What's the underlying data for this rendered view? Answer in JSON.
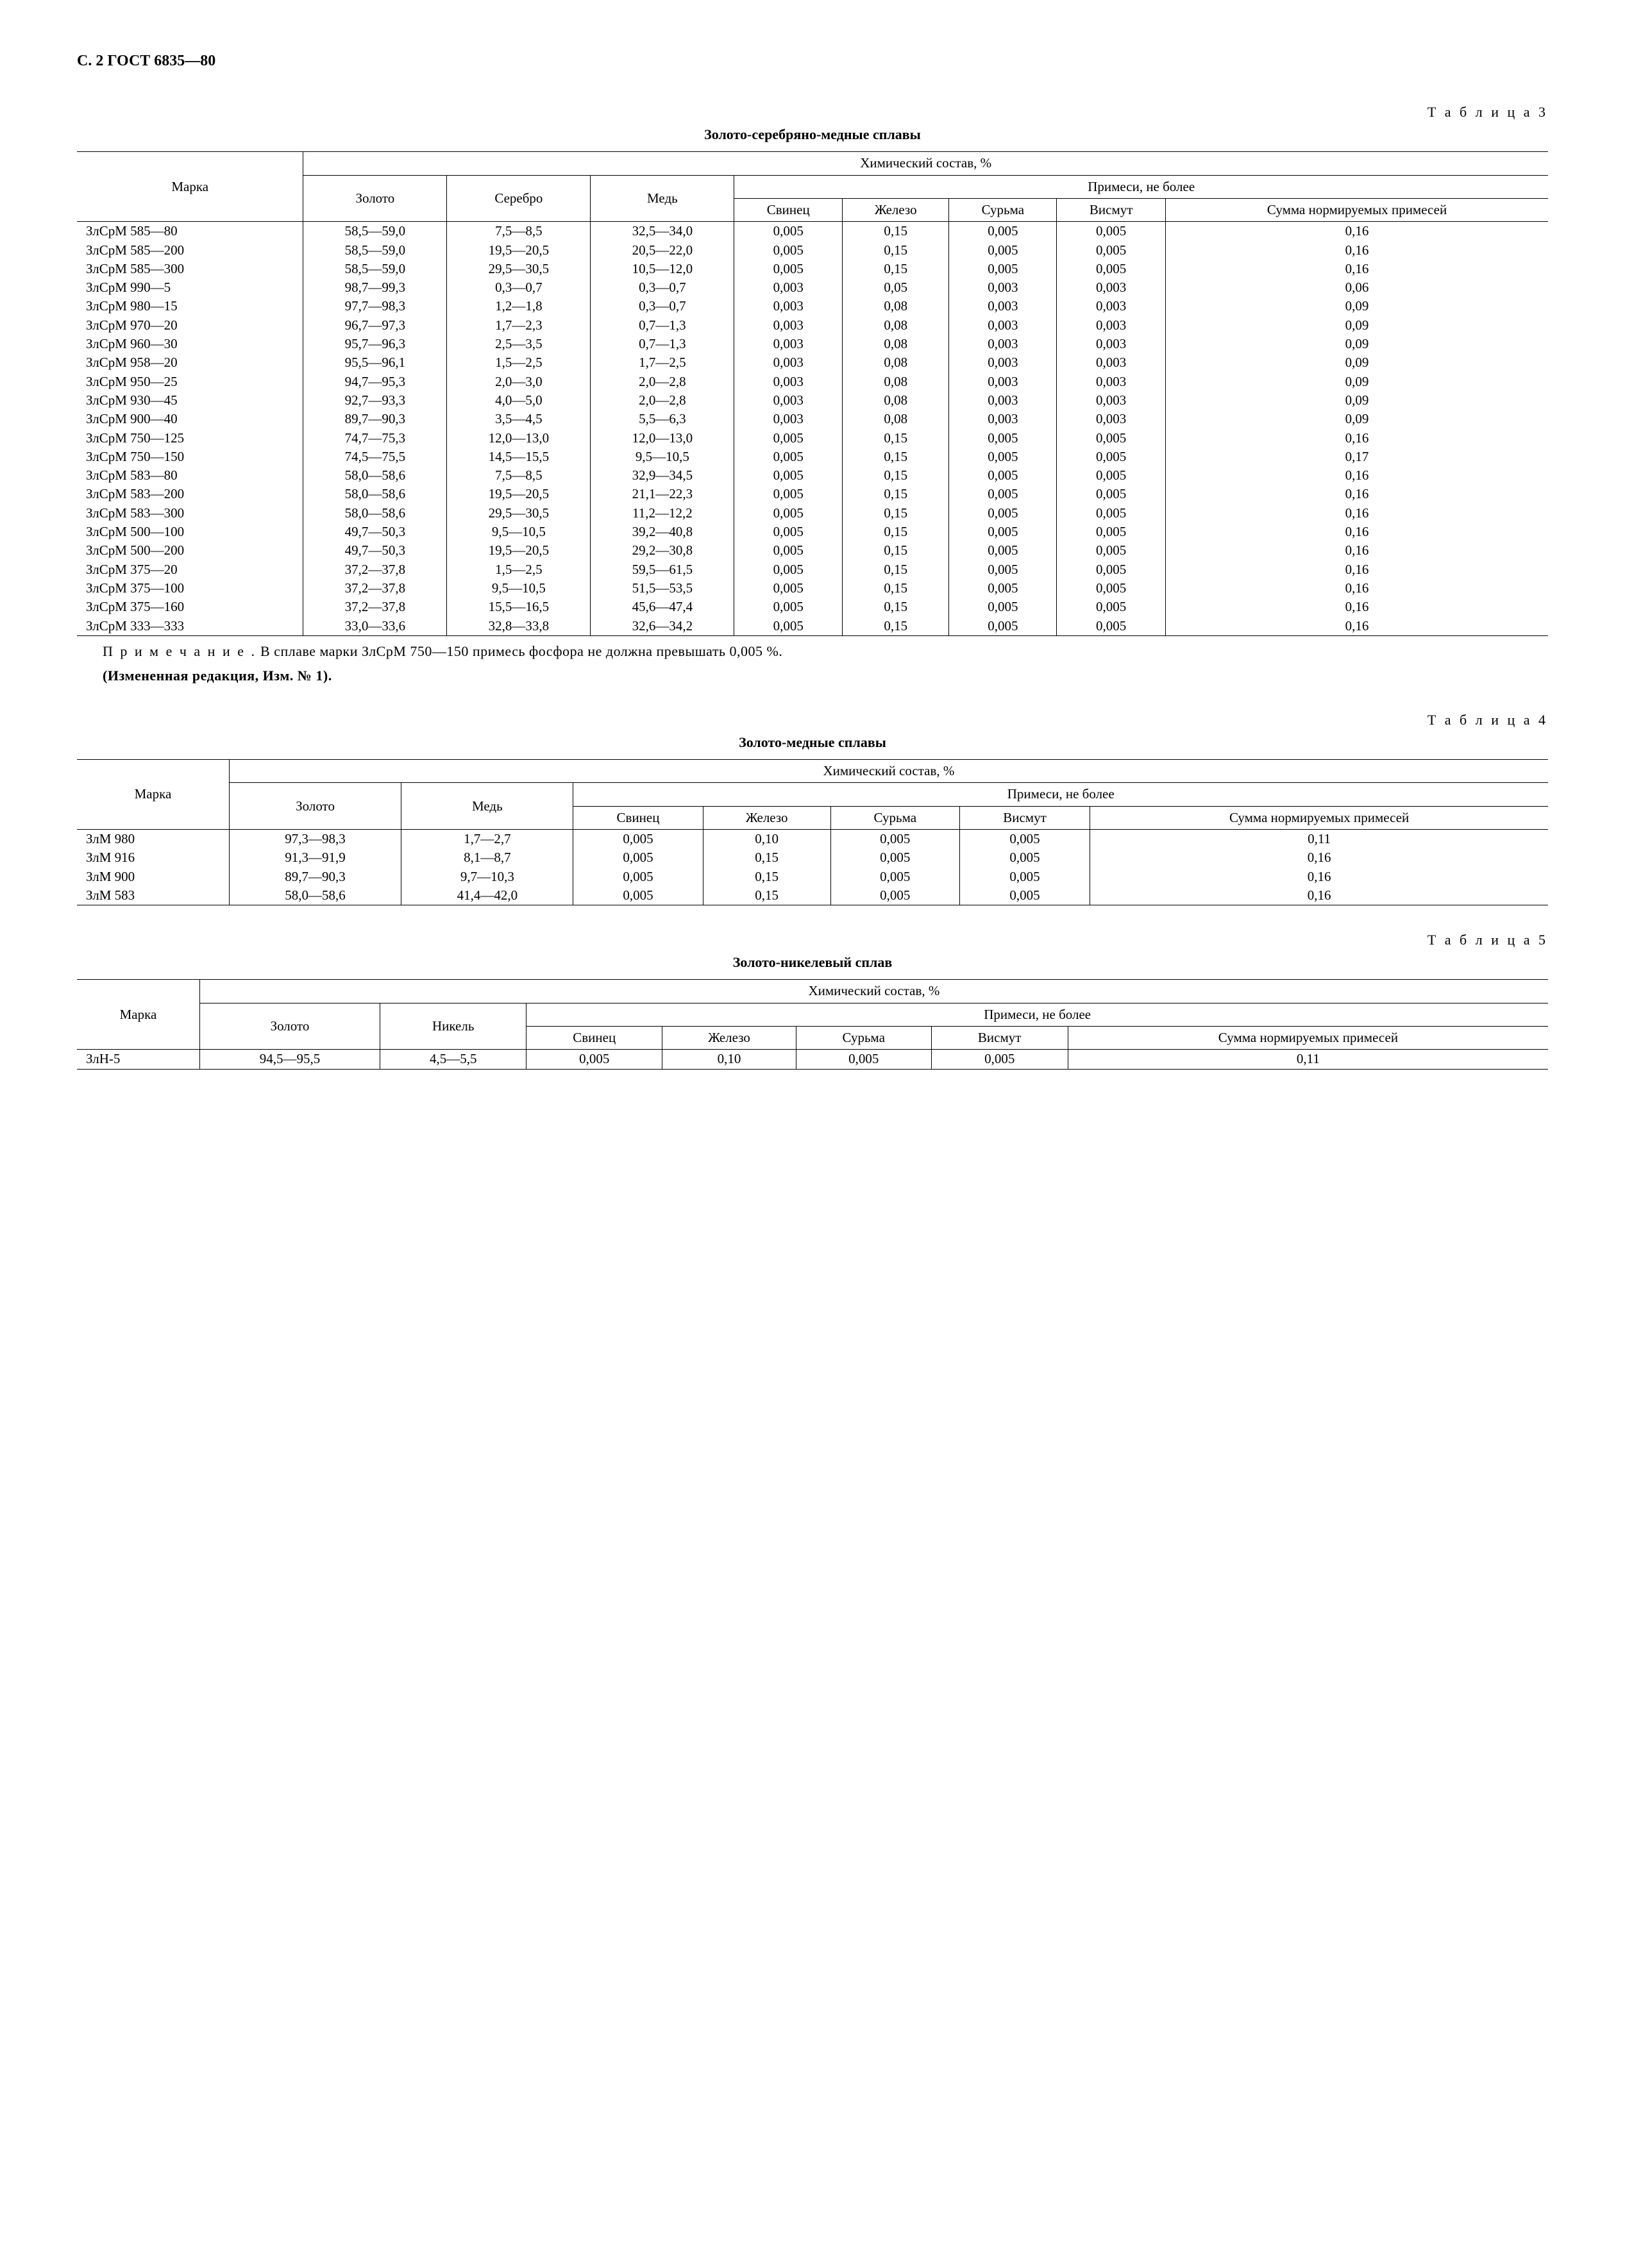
{
  "page_header": "С. 2 ГОСТ 6835—80",
  "table3": {
    "label": "Т а б л и ц а   3",
    "title": "Золото-серебряно-медные сплавы",
    "header_group": "Химический состав, %",
    "impurities_group": "Примеси, не более",
    "columns": {
      "marka": "Марка",
      "gold": "Золото",
      "silver": "Серебро",
      "copper": "Медь",
      "lead": "Свинец",
      "iron": "Железо",
      "antimony": "Сурьма",
      "bismuth": "Висмут",
      "sum": "Сумма нормиру­емых примесей"
    },
    "rows": [
      [
        "ЗлСрМ 585—80",
        "58,5—59,0",
        "7,5—8,5",
        "32,5—34,0",
        "0,005",
        "0,15",
        "0,005",
        "0,005",
        "0,16"
      ],
      [
        "ЗлСрМ 585—200",
        "58,5—59,0",
        "19,5—20,5",
        "20,5—22,0",
        "0,005",
        "0,15",
        "0,005",
        "0,005",
        "0,16"
      ],
      [
        "ЗлСрМ 585—300",
        "58,5—59,0",
        "29,5—30,5",
        "10,5—12,0",
        "0,005",
        "0,15",
        "0,005",
        "0,005",
        "0,16"
      ],
      [
        "ЗлСрМ 990—5",
        "98,7—99,3",
        "0,3—0,7",
        "0,3—0,7",
        "0,003",
        "0,05",
        "0,003",
        "0,003",
        "0,06"
      ],
      [
        "ЗлСрМ 980—15",
        "97,7—98,3",
        "1,2—1,8",
        "0,3—0,7",
        "0,003",
        "0,08",
        "0,003",
        "0,003",
        "0,09"
      ],
      [
        "ЗлСрМ 970—20",
        "96,7—97,3",
        "1,7—2,3",
        "0,7—1,3",
        "0,003",
        "0,08",
        "0,003",
        "0,003",
        "0,09"
      ],
      [
        "ЗлСрМ 960—30",
        "95,7—96,3",
        "2,5—3,5",
        "0,7—1,3",
        "0,003",
        "0,08",
        "0,003",
        "0,003",
        "0,09"
      ],
      [
        "ЗлСрМ 958—20",
        "95,5—96,1",
        "1,5—2,5",
        "1,7—2,5",
        "0,003",
        "0,08",
        "0,003",
        "0,003",
        "0,09"
      ],
      [
        "ЗлСрМ 950—25",
        "94,7—95,3",
        "2,0—3,0",
        "2,0—2,8",
        "0,003",
        "0,08",
        "0,003",
        "0,003",
        "0,09"
      ],
      [
        "ЗлСрМ 930—45",
        "92,7—93,3",
        "4,0—5,0",
        "2,0—2,8",
        "0,003",
        "0,08",
        "0,003",
        "0,003",
        "0,09"
      ],
      [
        "ЗлСрМ 900—40",
        "89,7—90,3",
        "3,5—4,5",
        "5,5—6,3",
        "0,003",
        "0,08",
        "0,003",
        "0,003",
        "0,09"
      ],
      [
        "ЗлСрМ 750—125",
        "74,7—75,3",
        "12,0—13,0",
        "12,0—13,0",
        "0,005",
        "0,15",
        "0,005",
        "0,005",
        "0,16"
      ],
      [
        "ЗлСрМ 750—150",
        "74,5—75,5",
        "14,5—15,5",
        "9,5—10,5",
        "0,005",
        "0,15",
        "0,005",
        "0,005",
        "0,17"
      ],
      [
        "ЗлСрМ 583—80",
        "58,0—58,6",
        "7,5—8,5",
        "32,9—34,5",
        "0,005",
        "0,15",
        "0,005",
        "0,005",
        "0,16"
      ],
      [
        "ЗлСрМ 583—200",
        "58,0—58,6",
        "19,5—20,5",
        "21,1—22,3",
        "0,005",
        "0,15",
        "0,005",
        "0,005",
        "0,16"
      ],
      [
        "ЗлСрМ 583—300",
        "58,0—58,6",
        "29,5—30,5",
        "11,2—12,2",
        "0,005",
        "0,15",
        "0,005",
        "0,005",
        "0,16"
      ],
      [
        "ЗлСрМ 500—100",
        "49,7—50,3",
        "9,5—10,5",
        "39,2—40,8",
        "0,005",
        "0,15",
        "0,005",
        "0,005",
        "0,16"
      ],
      [
        "ЗлСрМ 500—200",
        "49,7—50,3",
        "19,5—20,5",
        "29,2—30,8",
        "0,005",
        "0,15",
        "0,005",
        "0,005",
        "0,16"
      ],
      [
        "ЗлСрМ 375—20",
        "37,2—37,8",
        "1,5—2,5",
        "59,5—61,5",
        "0,005",
        "0,15",
        "0,005",
        "0,005",
        "0,16"
      ],
      [
        "ЗлСрМ 375—100",
        "37,2—37,8",
        "9,5—10,5",
        "51,5—53,5",
        "0,005",
        "0,15",
        "0,005",
        "0,005",
        "0,16"
      ],
      [
        "ЗлСрМ 375—160",
        "37,2—37,8",
        "15,5—16,5",
        "45,6—47,4",
        "0,005",
        "0,15",
        "0,005",
        "0,005",
        "0,16"
      ],
      [
        "ЗлСрМ 333—333",
        "33,0—33,6",
        "32,8—33,8",
        "32,6—34,2",
        "0,005",
        "0,15",
        "0,005",
        "0,005",
        "0,16"
      ]
    ],
    "note_prefix": "П р и м е ч а н и е .",
    "note_text": " В сплаве марки ЗлСрМ 750—150 примесь фосфора не должна превышать 0,005 %.",
    "edition_note": "(Измененная редакция, Изм. № 1)."
  },
  "table4": {
    "label": "Т а б л и ц а   4",
    "title": "Золото-медные сплавы",
    "header_group": "Химический состав, %",
    "impurities_group": "Примеси, не более",
    "columns": {
      "marka": "Марка",
      "gold": "Золото",
      "copper": "Медь",
      "lead": "Свинец",
      "iron": "Железо",
      "antimony": "Сурьма",
      "bismuth": "Висмут",
      "sum": "Сумма нормируемых примесей"
    },
    "rows": [
      [
        "ЗлМ 980",
        "97,3—98,3",
        "1,7—2,7",
        "0,005",
        "0,10",
        "0,005",
        "0,005",
        "0,11"
      ],
      [
        "ЗлМ 916",
        "91,3—91,9",
        "8,1—8,7",
        "0,005",
        "0,15",
        "0,005",
        "0,005",
        "0,16"
      ],
      [
        "ЗлМ 900",
        "89,7—90,3",
        "9,7—10,3",
        "0,005",
        "0,15",
        "0,005",
        "0,005",
        "0,16"
      ],
      [
        "ЗлМ 583",
        "58,0—58,6",
        "41,4—42,0",
        "0,005",
        "0,15",
        "0,005",
        "0,005",
        "0,16"
      ]
    ]
  },
  "table5": {
    "label": "Т а б л и ц а   5",
    "title": "Золото-никелевый сплав",
    "header_group": "Химический состав, %",
    "impurities_group": "Примеси, не более",
    "columns": {
      "marka": "Марка",
      "gold": "Золото",
      "nickel": "Никель",
      "lead": "Свинец",
      "iron": "Железо",
      "antimony": "Сурьма",
      "bismuth": "Висмут",
      "sum": "Сумма нормируемых примесей"
    },
    "rows": [
      [
        "ЗлН-5",
        "94,5—95,5",
        "4,5—5,5",
        "0,005",
        "0,10",
        "0,005",
        "0,005",
        "0,11"
      ]
    ]
  }
}
